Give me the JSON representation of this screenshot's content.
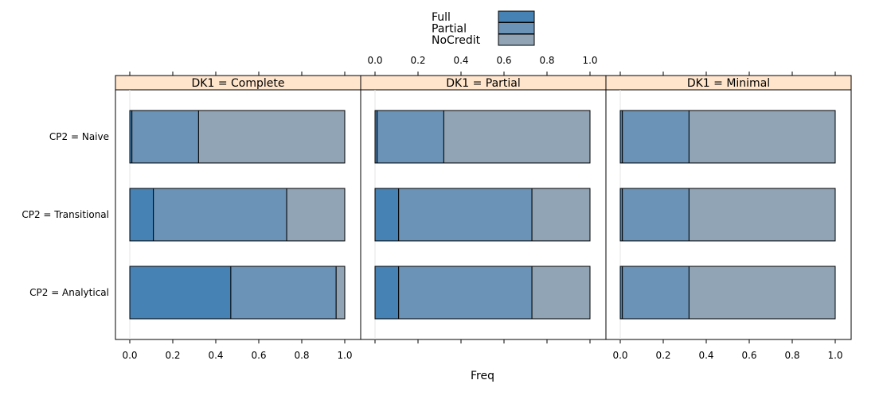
{
  "chart_data": {
    "type": "bar",
    "orientation": "horizontal",
    "stacked": true,
    "x_axis_label": "Freq",
    "xlim": [
      0,
      1
    ],
    "x_ticks": [
      "0.0",
      "0.2",
      "0.4",
      "0.6",
      "0.8",
      "1.0"
    ],
    "legend_position": "top",
    "categories": [
      "CP2 = Naive",
      "CP2 = Transitional",
      "CP2 = Analytical"
    ],
    "series_names": [
      "Full",
      "Partial",
      "NoCredit"
    ],
    "colors": {
      "Full": "#4682b4",
      "Partial": "#6b93b7",
      "NoCredit": "#90a4b5",
      "strip": "#ffe5cc"
    },
    "panels": [
      {
        "strip_label": "DK1 = Complete",
        "bars": [
          {
            "category": "CP2 = Naive",
            "Full": 0.01,
            "Partial": 0.31,
            "NoCredit": 0.68
          },
          {
            "category": "CP2 = Transitional",
            "Full": 0.11,
            "Partial": 0.62,
            "NoCredit": 0.27
          },
          {
            "category": "CP2 = Analytical",
            "Full": 0.47,
            "Partial": 0.49,
            "NoCredit": 0.04
          }
        ]
      },
      {
        "strip_label": "DK1 = Partial",
        "bars": [
          {
            "category": "CP2 = Naive",
            "Full": 0.01,
            "Partial": 0.31,
            "NoCredit": 0.68
          },
          {
            "category": "CP2 = Transitional",
            "Full": 0.11,
            "Partial": 0.62,
            "NoCredit": 0.27
          },
          {
            "category": "CP2 = Analytical",
            "Full": 0.11,
            "Partial": 0.62,
            "NoCredit": 0.27
          }
        ]
      },
      {
        "strip_label": "DK1 = Minimal",
        "bars": [
          {
            "category": "CP2 = Naive",
            "Full": 0.01,
            "Partial": 0.31,
            "NoCredit": 0.68
          },
          {
            "category": "CP2 = Transitional",
            "Full": 0.01,
            "Partial": 0.31,
            "NoCredit": 0.68
          },
          {
            "category": "CP2 = Analytical",
            "Full": 0.01,
            "Partial": 0.31,
            "NoCredit": 0.68
          }
        ]
      }
    ]
  }
}
